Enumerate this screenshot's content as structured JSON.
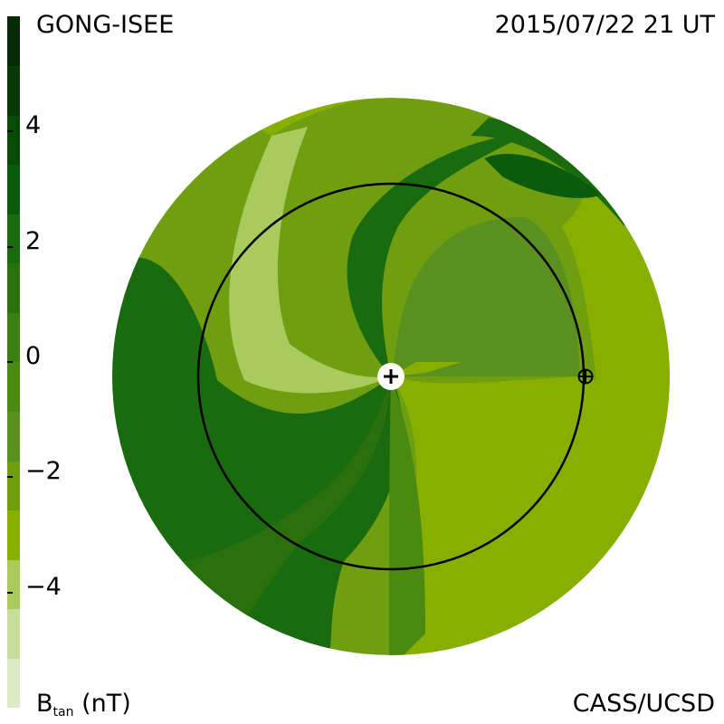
{
  "header": {
    "source": "GONG-ISEE",
    "timestamp": "2015/07/22 21 UT"
  },
  "footer": {
    "quantity": "B",
    "quantity_sub": "tan",
    "unit": "(nT)",
    "credit": "CASS/UCSD"
  },
  "colorbar": {
    "range": [
      -6,
      6
    ],
    "levels": [
      "#ddeac4",
      "#c7dd9c",
      "#a9ca5c",
      "#88ae00",
      "#6f9f10",
      "#5a9020",
      "#4a8a10",
      "#3c8014",
      "#2a700c",
      "#1a6a10",
      "#0c5a0c",
      "#0a4a08",
      "#073a06",
      "#062a06"
    ],
    "ticks": [
      {
        "value": 4,
        "label": "4"
      },
      {
        "value": 2,
        "label": "2"
      },
      {
        "value": 0,
        "label": "0"
      },
      {
        "value": -2,
        "label": "−2"
      },
      {
        "value": -4,
        "label": "−4"
      }
    ]
  },
  "chart_data": {
    "type": "heatmap",
    "title": "GONG-ISEE 2015/07/22 21 UT",
    "quantity": "Btan (nT)",
    "color_range": [
      -6,
      6
    ],
    "sun_symbol": "plus-circle-icon",
    "earth_symbol": "earth-icon",
    "orbit": "1 AU circle",
    "note": "Ecliptic-plane view of tangential magnetic field; spiral structure with sectors of positive and negative Btan"
  }
}
